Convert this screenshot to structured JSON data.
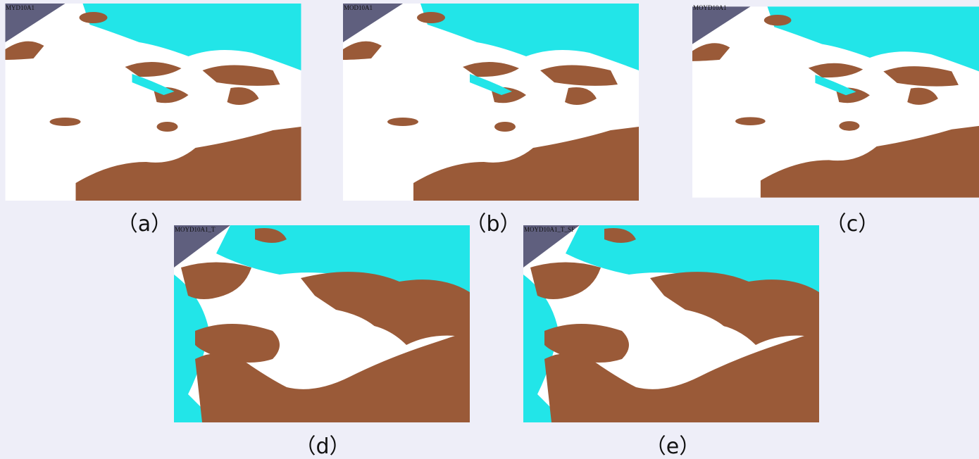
{
  "panels": [
    {
      "title": "MYD10A1",
      "caption": "（a）"
    },
    {
      "title": "MOD10A1",
      "caption": "（b）"
    },
    {
      "title": "MOYD10A1",
      "caption": "（c）"
    },
    {
      "title": "MOYD10A1_T",
      "caption": "（d）"
    },
    {
      "title": "MOYD10A1_T_SF",
      "caption": "（e）"
    }
  ]
}
